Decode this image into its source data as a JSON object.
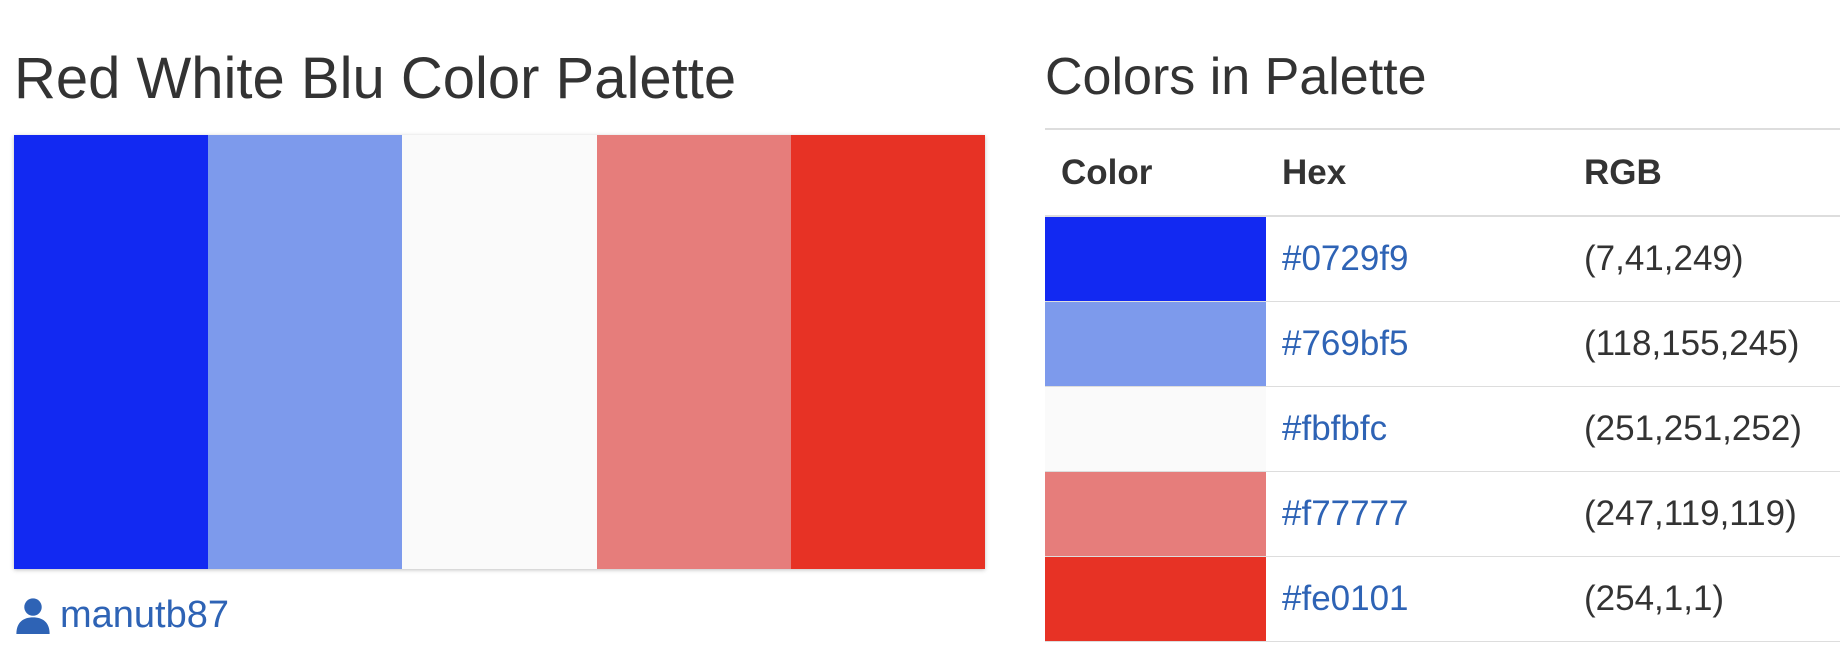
{
  "palette": {
    "title": "Red White Blu Color Palette",
    "author": "manutb87",
    "author_icon": "user-icon"
  },
  "colors_section": {
    "title": "Colors in Palette",
    "headers": {
      "color": "Color",
      "hex": "Hex",
      "rgb": "RGB"
    }
  },
  "colors": [
    {
      "hex": "#0729f9",
      "rgb": "(7,41,249)"
    },
    {
      "hex": "#769bf5",
      "rgb": "(118,155,245)"
    },
    {
      "hex": "#fbfbfc",
      "rgb": "(251,251,252)"
    },
    {
      "hex": "#f77777",
      "rgb": "(247,119,119)"
    },
    {
      "hex": "#fe0101",
      "rgb": "(254,1,1)"
    }
  ],
  "swatch_display_colors": [
    "#1229f2",
    "#7d9aec",
    "#fafafa",
    "#e67d7b",
    "#e73225"
  ],
  "link_color": "#2e63b5"
}
